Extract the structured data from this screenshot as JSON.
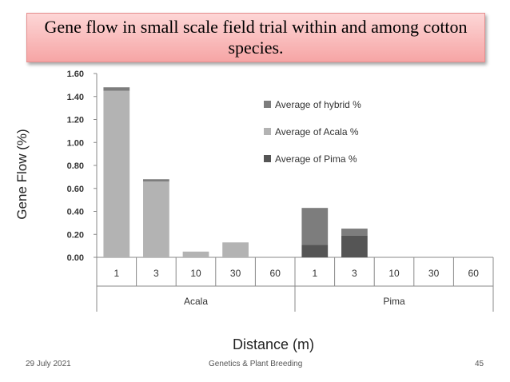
{
  "slide": {
    "title": "Gene flow in small scale field trial within and among cotton species.",
    "footer_date": "29 July 2021",
    "footer_center": "Genetics & Plant Breeding",
    "page_number": "45"
  },
  "chart_data": {
    "type": "bar",
    "stacked": true,
    "title": "Gene flow in small scale field trial within and among cotton species.",
    "xlabel": "Distance (m)",
    "ylabel": "Gene Flow (%)",
    "ylim": [
      0,
      1.6
    ],
    "yticks": [
      "0.00",
      "0.20",
      "0.40",
      "0.60",
      "0.80",
      "1.00",
      "1.20",
      "1.40",
      "1.60"
    ],
    "groups": [
      {
        "name": "Acala",
        "categories": [
          "1",
          "3",
          "10",
          "30",
          "60"
        ]
      },
      {
        "name": "Pima",
        "categories": [
          "1",
          "3",
          "10",
          "30",
          "60"
        ]
      }
    ],
    "series": [
      {
        "name": "Average of Pima %",
        "color": "#555555",
        "values": [
          0,
          0,
          0,
          0,
          0,
          0.11,
          0.19,
          0,
          0,
          0
        ]
      },
      {
        "name": "Average of Acala %",
        "color": "#b3b3b3",
        "values": [
          1.45,
          0.66,
          0.05,
          0.13,
          0,
          0,
          0,
          0,
          0,
          0
        ]
      },
      {
        "name": "Average of hybrid %",
        "color": "#7d7d7d",
        "values": [
          0.03,
          0.02,
          0,
          0,
          0,
          0.32,
          0.06,
          0,
          0,
          0
        ]
      }
    ],
    "legend": [
      "Average of hybrid %",
      "Average of Acala %",
      "Average of Pima %"
    ],
    "legend_position": "right"
  }
}
